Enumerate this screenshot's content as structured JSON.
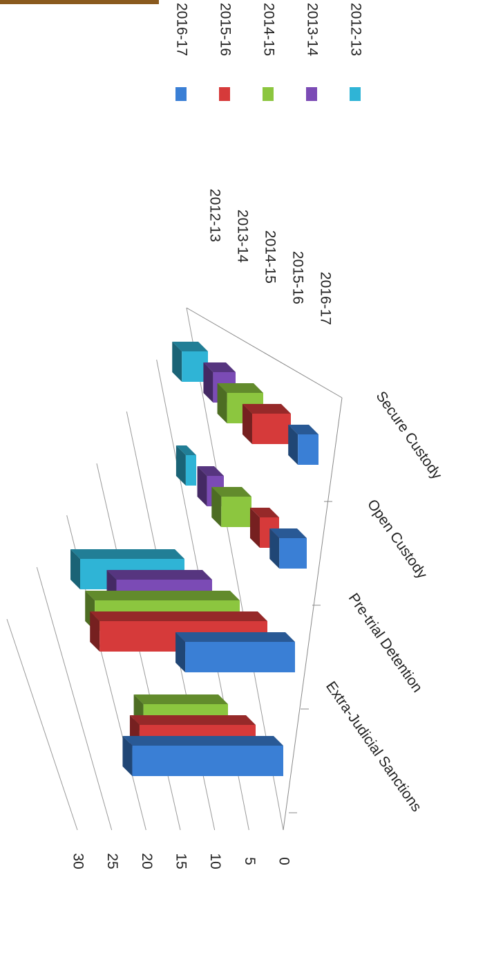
{
  "chart_data": {
    "type": "bar3d",
    "categories": [
      "Extra-Judicial Sanctions",
      "Pre-trial Detention",
      "Open Custody",
      "Secure Custody"
    ],
    "series": [
      {
        "name": "2016-17",
        "color": "#3a7fd5",
        "values": [
          22,
          16,
          4,
          3
        ]
      },
      {
        "name": "2015-16",
        "color": "#d63a3a",
        "values": [
          18,
          26,
          3,
          6
        ]
      },
      {
        "name": "2014-15",
        "color": "#8cc63f",
        "values": [
          14,
          24,
          5,
          6
        ]
      },
      {
        "name": "2013-14",
        "color": "#7b4bb5",
        "values": [
          null,
          17,
          3,
          4
        ]
      },
      {
        "name": "2012-13",
        "color": "#2fb4d6",
        "values": [
          null,
          20,
          2,
          5
        ]
      }
    ],
    "ylim": [
      0,
      30
    ],
    "yticks": [
      0,
      5,
      10,
      15,
      20,
      25,
      30
    ],
    "grid": true
  }
}
